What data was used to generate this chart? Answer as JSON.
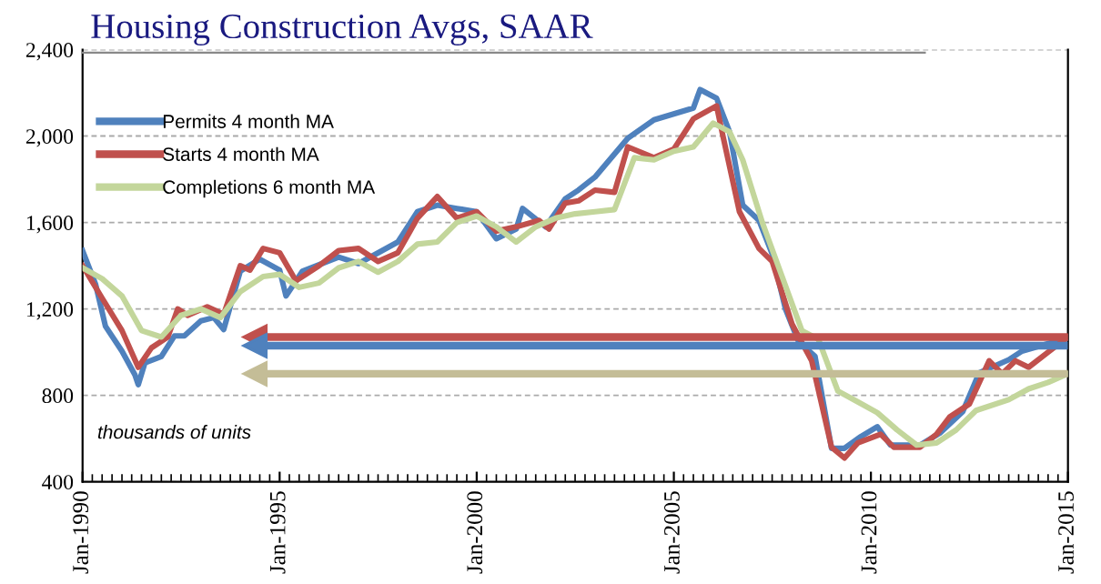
{
  "chart_data": {
    "type": "line",
    "title": "Housing Construction Avgs, SAAR",
    "annotations": [
      "thousands of units"
    ],
    "ylim": [
      400,
      2400
    ],
    "yticks": [
      {
        "value": 400,
        "label": "400"
      },
      {
        "value": 800,
        "label": "800"
      },
      {
        "value": 1200,
        "label": "1,200"
      },
      {
        "value": 1600,
        "label": "1,600"
      },
      {
        "value": 2000,
        "label": "2,000"
      },
      {
        "value": 2400,
        "label": "2,400"
      }
    ],
    "xlim": [
      "1990-01",
      "2015-01"
    ],
    "xticks": [
      {
        "value": "1990-01",
        "label": "Jan-1990"
      },
      {
        "value": "1995-01",
        "label": "Jan-1995"
      },
      {
        "value": "2000-01",
        "label": "Jan-2000"
      },
      {
        "value": "2005-01",
        "label": "Jan-2005"
      },
      {
        "value": "2010-01",
        "label": "Jan-2010"
      },
      {
        "value": "2015-01",
        "label": "Jan-2015"
      }
    ],
    "grid": "y",
    "legend": "top left",
    "line_style": "solid",
    "marker": "none",
    "ref_lines": [
      {
        "axis": "y",
        "value": 1070,
        "color": "#c0504d"
      },
      {
        "axis": "y",
        "value": 1030,
        "color": "#4f81bd"
      },
      {
        "axis": "y",
        "value": 900,
        "color": "#c4bd97"
      }
    ],
    "series": [
      {
        "name": "Permits 4 month MA",
        "color": "#4f81bd",
        "x": [
          "1990-01",
          "1990-05",
          "1990-08",
          "1991-01",
          "1991-05",
          "1991-06",
          "1991-08",
          "1992-01",
          "1992-05",
          "1992-08",
          "1993-01",
          "1993-05",
          "1993-08",
          "1994-01",
          "1994-07",
          "1995-01",
          "1995-03",
          "1995-08",
          "1996-07",
          "1997-01",
          "1998-01",
          "1998-07",
          "1999-01",
          "1999-07",
          "2000-01",
          "2000-07",
          "2001-01",
          "2001-03",
          "2001-10",
          "2002-04",
          "2002-08",
          "2003-01",
          "2003-11",
          "2004-07",
          "2005-07",
          "2005-09",
          "2006-02",
          "2006-06",
          "2006-10",
          "2007-03",
          "2007-07",
          "2007-11",
          "2008-03",
          "2008-08",
          "2009-01",
          "2009-05",
          "2009-10",
          "2010-03",
          "2010-07",
          "2011-04",
          "2011-10",
          "2012-05",
          "2012-10",
          "2013-07",
          "2013-11",
          "2014-06",
          "2014-12"
        ],
        "values": [
          1470,
          1315,
          1120,
          1005,
          895,
          850,
          950,
          980,
          1075,
          1075,
          1145,
          1160,
          1105,
          1375,
          1430,
          1380,
          1260,
          1375,
          1440,
          1410,
          1510,
          1650,
          1680,
          1665,
          1650,
          1525,
          1570,
          1665,
          1580,
          1710,
          1750,
          1810,
          1990,
          2075,
          2130,
          2215,
          2175,
          2020,
          1680,
          1610,
          1455,
          1200,
          1050,
          980,
          555,
          555,
          610,
          655,
          570,
          570,
          625,
          725,
          905,
          965,
          1005,
          1035,
          1060
        ]
      },
      {
        "name": "Starts 4 month MA",
        "color": "#c0504d",
        "x": [
          "1990-01",
          "1990-07",
          "1991-01",
          "1991-06",
          "1991-10",
          "1992-03",
          "1992-06",
          "1992-09",
          "1993-03",
          "1993-08",
          "1994-01",
          "1994-04",
          "1994-08",
          "1995-01",
          "1995-06",
          "1996-01",
          "1996-07",
          "1997-01",
          "1997-07",
          "1998-01",
          "1998-07",
          "1999-01",
          "1999-07",
          "2000-01",
          "2000-07",
          "2001-01",
          "2001-08",
          "2001-11",
          "2002-04",
          "2002-08",
          "2003-01",
          "2003-07",
          "2003-11",
          "2004-07",
          "2005-01",
          "2005-07",
          "2006-02",
          "2006-04",
          "2006-09",
          "2007-03",
          "2007-07",
          "2008-01",
          "2008-07",
          "2009-01",
          "2009-05",
          "2009-09",
          "2010-04",
          "2010-08",
          "2011-04",
          "2011-09",
          "2012-01",
          "2012-07",
          "2013-01",
          "2013-05",
          "2013-09",
          "2014-01",
          "2014-07",
          "2015-01"
        ],
        "values": [
          1400,
          1250,
          1100,
          930,
          1020,
          1070,
          1200,
          1170,
          1210,
          1175,
          1400,
          1380,
          1480,
          1460,
          1330,
          1400,
          1470,
          1480,
          1420,
          1460,
          1620,
          1720,
          1620,
          1650,
          1560,
          1580,
          1610,
          1570,
          1690,
          1700,
          1750,
          1740,
          1950,
          1900,
          1940,
          2080,
          2140,
          2000,
          1650,
          1480,
          1420,
          1130,
          960,
          560,
          510,
          580,
          620,
          560,
          560,
          620,
          700,
          760,
          960,
          900,
          960,
          930,
          1000,
          1070
        ]
      },
      {
        "name": "Completions 6 month MA",
        "color": "#c3d69b",
        "x": [
          "1990-01",
          "1990-07",
          "1991-01",
          "1991-07",
          "1992-01",
          "1992-07",
          "1993-01",
          "1993-07",
          "1994-01",
          "1994-08",
          "1995-01",
          "1995-07",
          "1996-01",
          "1996-07",
          "1997-01",
          "1997-07",
          "1998-01",
          "1998-07",
          "1999-01",
          "1999-07",
          "2000-01",
          "2000-07",
          "2001-01",
          "2001-07",
          "2002-01",
          "2002-07",
          "2003-01",
          "2003-07",
          "2004-01",
          "2004-07",
          "2005-01",
          "2005-07",
          "2006-01",
          "2006-06",
          "2006-10",
          "2007-04",
          "2007-10",
          "2008-04",
          "2008-09",
          "2009-03",
          "2009-09",
          "2010-03",
          "2010-09",
          "2011-03",
          "2011-09",
          "2012-03",
          "2012-09",
          "2013-07",
          "2014-01",
          "2014-07",
          "2015-01"
        ],
        "values": [
          1390,
          1340,
          1260,
          1100,
          1070,
          1170,
          1200,
          1160,
          1280,
          1350,
          1360,
          1300,
          1320,
          1390,
          1420,
          1370,
          1420,
          1500,
          1510,
          1600,
          1630,
          1580,
          1510,
          1580,
          1620,
          1640,
          1650,
          1660,
          1900,
          1890,
          1930,
          1950,
          2060,
          2020,
          1890,
          1600,
          1350,
          1100,
          1060,
          820,
          770,
          720,
          640,
          570,
          580,
          640,
          730,
          780,
          830,
          860,
          900
        ]
      }
    ]
  }
}
